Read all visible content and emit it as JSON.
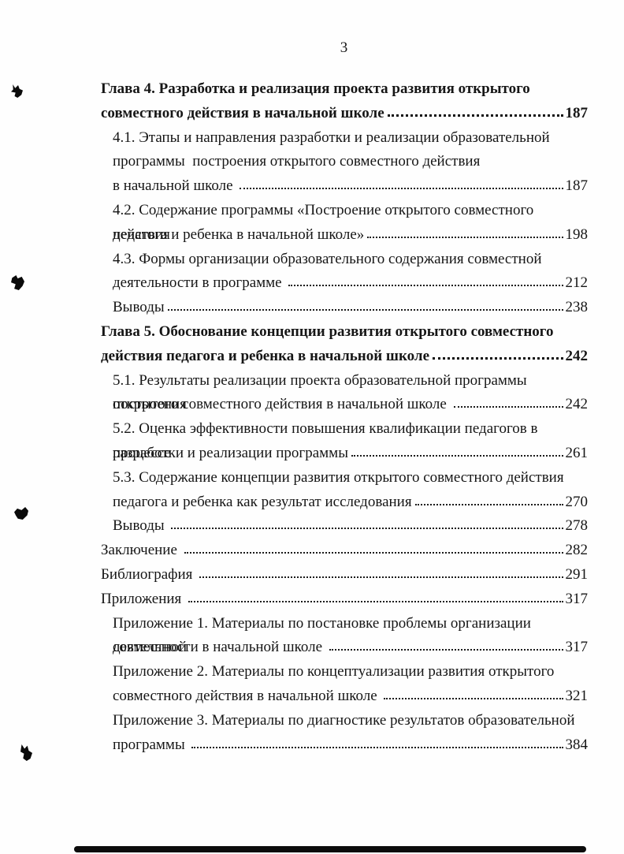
{
  "page": {
    "number": "3"
  },
  "colors": {
    "text": "#161616",
    "background": "#fefefe",
    "artifact": "#0a0a0a"
  },
  "toc": {
    "entries": [
      {
        "bold": true,
        "indent": false,
        "lines": [
          {
            "text": "Глава 4. Разработка и реализация проекта развития открытого"
          },
          {
            "text": "совместного действия в начальной школе",
            "page": "187"
          }
        ]
      },
      {
        "bold": false,
        "indent": true,
        "lines": [
          {
            "text": "4.1. Этапы и направления разработки и реализации образовательной"
          },
          {
            "text": "программы  построения открытого совместного действия"
          },
          {
            "text": "в начальной школе ",
            "page": "187"
          }
        ]
      },
      {
        "bold": false,
        "indent": true,
        "lines": [
          {
            "text": "4.2. Содержание программы «Построение открытого совместного действия"
          },
          {
            "text": "педагога и ребенка в начальной школе»",
            "page": "198"
          }
        ]
      },
      {
        "bold": false,
        "indent": true,
        "lines": [
          {
            "text": "4.3. Формы организации образовательного содержания совместной"
          },
          {
            "text": "деятельности в программе ",
            "page": "212"
          }
        ]
      },
      {
        "bold": false,
        "indent": true,
        "lines": [
          {
            "text": "Выводы",
            "page": "238"
          }
        ]
      },
      {
        "bold": true,
        "indent": false,
        "lines": [
          {
            "text": "Глава 5. Обоснование концепции развития открытого совместного"
          },
          {
            "text": "действия педагога и ребенка в начальной школе",
            "page": "242"
          }
        ]
      },
      {
        "bold": false,
        "indent": true,
        "lines": [
          {
            "text": "5.1. Результаты реализации проекта образовательной программы  построения"
          },
          {
            "text": "открытого совместного действия в начальной школе ",
            "page": "242"
          }
        ]
      },
      {
        "bold": false,
        "indent": true,
        "lines": [
          {
            "text": "5.2. Оценка эффективности повышения квалификации педагогов в процессе"
          },
          {
            "text": "разработки и реализации программы",
            "page": "261"
          }
        ]
      },
      {
        "bold": false,
        "indent": true,
        "lines": [
          {
            "text": "5.3. Содержание концепции развития открытого совместного действия"
          },
          {
            "text": "педагога и ребенка как результат исследования",
            "page": "270"
          }
        ]
      },
      {
        "bold": false,
        "indent": true,
        "lines": [
          {
            "text": "Выводы ",
            "page": "278"
          }
        ]
      },
      {
        "bold": false,
        "indent": false,
        "lines": [
          {
            "text": "Заключение ",
            "page": "282"
          }
        ]
      },
      {
        "bold": false,
        "indent": false,
        "lines": [
          {
            "text": "Библиография ",
            "page": "291"
          }
        ]
      },
      {
        "bold": false,
        "indent": false,
        "lines": [
          {
            "text": "Приложения ",
            "page": "317"
          }
        ]
      },
      {
        "bold": false,
        "indent": true,
        "lines": [
          {
            "text": "Приложение 1. Материалы по постановке проблемы организации совместной"
          },
          {
            "text": "деятельности в начальной школе ",
            "page": "317"
          }
        ]
      },
      {
        "bold": false,
        "indent": true,
        "lines": [
          {
            "text": "Приложение 2. Материалы по концептуализации развития открытого"
          },
          {
            "text": "совместного действия в начальной школе ",
            "page": "321"
          }
        ]
      },
      {
        "bold": false,
        "indent": true,
        "lines": [
          {
            "text": "Приложение 3. Материалы по диагностике результатов образовательной"
          },
          {
            "text": "программы ",
            "page": "384"
          }
        ]
      }
    ]
  }
}
